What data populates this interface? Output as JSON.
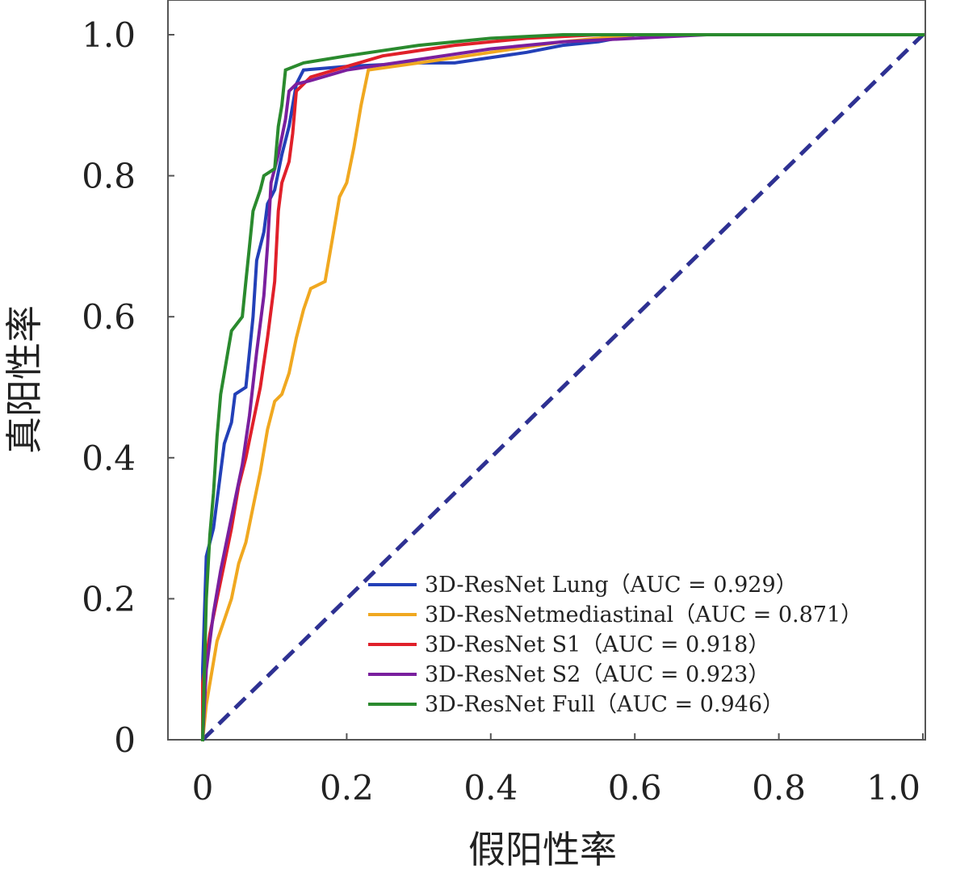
{
  "chart_data": {
    "type": "line",
    "xlabel": "假阳性率",
    "ylabel": "真阳性率",
    "xlim": [
      0,
      1
    ],
    "ylim": [
      0,
      1
    ],
    "x_ticks": [
      "0",
      "0.2",
      "0.4",
      "0.6",
      "0.8",
      "1.0"
    ],
    "y_ticks": [
      "0",
      "0.2",
      "0.4",
      "0.6",
      "0.8",
      "1.0"
    ],
    "grid": false,
    "legend_position": "bottom-right",
    "diagonal": {
      "color": "#2e3192",
      "style": "dashed",
      "points": [
        [
          0,
          0
        ],
        [
          1,
          1
        ]
      ]
    },
    "series": [
      {
        "name": "3D-ResNet Lung（AUC = 0.929）",
        "color": "#2340b8",
        "points": [
          [
            0,
            0
          ],
          [
            0,
            0.1
          ],
          [
            0.005,
            0.26
          ],
          [
            0.015,
            0.3
          ],
          [
            0.025,
            0.38
          ],
          [
            0.03,
            0.42
          ],
          [
            0.04,
            0.45
          ],
          [
            0.045,
            0.49
          ],
          [
            0.06,
            0.5
          ],
          [
            0.065,
            0.55
          ],
          [
            0.07,
            0.6
          ],
          [
            0.075,
            0.68
          ],
          [
            0.085,
            0.72
          ],
          [
            0.09,
            0.76
          ],
          [
            0.1,
            0.78
          ],
          [
            0.11,
            0.83
          ],
          [
            0.12,
            0.87
          ],
          [
            0.13,
            0.93
          ],
          [
            0.14,
            0.95
          ],
          [
            0.2,
            0.955
          ],
          [
            0.3,
            0.96
          ],
          [
            0.35,
            0.96
          ],
          [
            0.45,
            0.975
          ],
          [
            0.5,
            0.985
          ],
          [
            0.55,
            0.99
          ],
          [
            0.6,
            1.0
          ],
          [
            1.0,
            1.0
          ]
        ]
      },
      {
        "name": "3D-ResNetmediastinal（AUC = 0.871）",
        "color": "#f0a820",
        "points": [
          [
            0,
            0
          ],
          [
            0.005,
            0.05
          ],
          [
            0.02,
            0.14
          ],
          [
            0.03,
            0.17
          ],
          [
            0.04,
            0.2
          ],
          [
            0.05,
            0.25
          ],
          [
            0.06,
            0.28
          ],
          [
            0.07,
            0.33
          ],
          [
            0.08,
            0.38
          ],
          [
            0.09,
            0.44
          ],
          [
            0.1,
            0.48
          ],
          [
            0.11,
            0.49
          ],
          [
            0.12,
            0.52
          ],
          [
            0.13,
            0.57
          ],
          [
            0.14,
            0.61
          ],
          [
            0.15,
            0.64
          ],
          [
            0.17,
            0.65
          ],
          [
            0.18,
            0.71
          ],
          [
            0.19,
            0.77
          ],
          [
            0.2,
            0.79
          ],
          [
            0.21,
            0.84
          ],
          [
            0.22,
            0.9
          ],
          [
            0.23,
            0.95
          ],
          [
            0.3,
            0.96
          ],
          [
            0.4,
            0.975
          ],
          [
            0.5,
            0.99
          ],
          [
            0.6,
            1.0
          ],
          [
            1.0,
            1.0
          ]
        ]
      },
      {
        "name": "3D-ResNet S1（AUC = 0.918）",
        "color": "#e0202a",
        "points": [
          [
            0,
            0
          ],
          [
            0,
            0.08
          ],
          [
            0.01,
            0.15
          ],
          [
            0.02,
            0.2
          ],
          [
            0.03,
            0.25
          ],
          [
            0.04,
            0.3
          ],
          [
            0.05,
            0.36
          ],
          [
            0.06,
            0.4
          ],
          [
            0.07,
            0.45
          ],
          [
            0.08,
            0.5
          ],
          [
            0.09,
            0.57
          ],
          [
            0.1,
            0.65
          ],
          [
            0.105,
            0.75
          ],
          [
            0.11,
            0.79
          ],
          [
            0.12,
            0.82
          ],
          [
            0.125,
            0.86
          ],
          [
            0.13,
            0.92
          ],
          [
            0.14,
            0.93
          ],
          [
            0.15,
            0.94
          ],
          [
            0.2,
            0.955
          ],
          [
            0.25,
            0.97
          ],
          [
            0.35,
            0.985
          ],
          [
            0.45,
            0.995
          ],
          [
            0.55,
            1.0
          ],
          [
            1.0,
            1.0
          ]
        ]
      },
      {
        "name": "3D-ResNet S2（AUC = 0.923）",
        "color": "#7a1f9e",
        "points": [
          [
            0,
            0
          ],
          [
            0.005,
            0.1
          ],
          [
            0.015,
            0.18
          ],
          [
            0.025,
            0.24
          ],
          [
            0.035,
            0.29
          ],
          [
            0.045,
            0.34
          ],
          [
            0.055,
            0.39
          ],
          [
            0.065,
            0.46
          ],
          [
            0.075,
            0.55
          ],
          [
            0.085,
            0.63
          ],
          [
            0.09,
            0.7
          ],
          [
            0.095,
            0.79
          ],
          [
            0.105,
            0.83
          ],
          [
            0.115,
            0.88
          ],
          [
            0.12,
            0.92
          ],
          [
            0.13,
            0.93
          ],
          [
            0.15,
            0.935
          ],
          [
            0.2,
            0.95
          ],
          [
            0.3,
            0.965
          ],
          [
            0.4,
            0.98
          ],
          [
            0.5,
            0.99
          ],
          [
            0.6,
            0.995
          ],
          [
            0.7,
            1.0
          ],
          [
            1.0,
            1.0
          ]
        ]
      },
      {
        "name": "3D-ResNet Full（AUC = 0.946）",
        "color": "#2a8a2e",
        "points": [
          [
            0,
            0
          ],
          [
            0.005,
            0.2
          ],
          [
            0.01,
            0.29
          ],
          [
            0.015,
            0.35
          ],
          [
            0.02,
            0.43
          ],
          [
            0.025,
            0.49
          ],
          [
            0.03,
            0.52
          ],
          [
            0.035,
            0.55
          ],
          [
            0.04,
            0.58
          ],
          [
            0.055,
            0.6
          ],
          [
            0.06,
            0.65
          ],
          [
            0.065,
            0.7
          ],
          [
            0.07,
            0.75
          ],
          [
            0.08,
            0.78
          ],
          [
            0.085,
            0.8
          ],
          [
            0.1,
            0.81
          ],
          [
            0.105,
            0.87
          ],
          [
            0.11,
            0.9
          ],
          [
            0.115,
            0.95
          ],
          [
            0.14,
            0.96
          ],
          [
            0.2,
            0.97
          ],
          [
            0.3,
            0.985
          ],
          [
            0.4,
            0.995
          ],
          [
            0.5,
            1.0
          ],
          [
            1.0,
            1.0
          ]
        ]
      }
    ]
  }
}
